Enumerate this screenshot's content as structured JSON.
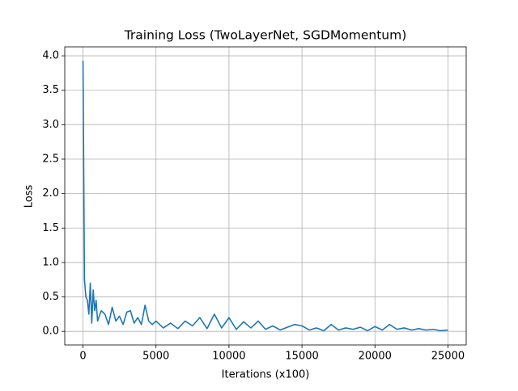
{
  "chart_data": {
    "type": "line",
    "title": "Training Loss (TwoLayerNet, SGDMomentum)",
    "xlabel": "Iterations (x100)",
    "ylabel": "Loss",
    "x": [
      0,
      100,
      200,
      300,
      400,
      500,
      600,
      700,
      800,
      900,
      1000,
      1250,
      1500,
      1750,
      2000,
      2250,
      2500,
      2750,
      3000,
      3250,
      3500,
      3750,
      4000,
      4250,
      4500,
      4750,
      5000,
      5500,
      6000,
      6500,
      7000,
      7500,
      8000,
      8500,
      9000,
      9500,
      10000,
      10500,
      11000,
      11500,
      12000,
      12500,
      13000,
      13500,
      14000,
      14500,
      15000,
      15500,
      16000,
      16500,
      17000,
      17500,
      18000,
      18500,
      19000,
      19500,
      20000,
      20500,
      21000,
      21500,
      22000,
      22500,
      23000,
      23500,
      24000,
      24500,
      25000
    ],
    "series": [
      {
        "name": "loss",
        "color": "#1f77b4",
        "values": [
          3.93,
          0.75,
          0.5,
          0.45,
          0.25,
          0.7,
          0.12,
          0.6,
          0.3,
          0.45,
          0.15,
          0.3,
          0.25,
          0.1,
          0.35,
          0.15,
          0.22,
          0.1,
          0.28,
          0.3,
          0.12,
          0.2,
          0.1,
          0.38,
          0.15,
          0.1,
          0.15,
          0.05,
          0.12,
          0.04,
          0.15,
          0.08,
          0.2,
          0.04,
          0.25,
          0.05,
          0.2,
          0.03,
          0.14,
          0.05,
          0.15,
          0.03,
          0.08,
          0.02,
          0.06,
          0.1,
          0.08,
          0.02,
          0.05,
          0.01,
          0.1,
          0.02,
          0.05,
          0.03,
          0.06,
          0.01,
          0.07,
          0.02,
          0.1,
          0.03,
          0.05,
          0.02,
          0.04,
          0.02,
          0.03,
          0.01,
          0.02
        ]
      }
    ],
    "xlim": [
      -1250,
      26250
    ],
    "xticks": [
      0,
      5000,
      10000,
      15000,
      20000,
      25000
    ],
    "ylim": [
      -0.197,
      4.13
    ],
    "yticks": [
      {
        "value": 0,
        "label": "0.0"
      },
      {
        "value": 0.5,
        "label": "0.5"
      },
      {
        "value": 1,
        "label": "1.0"
      },
      {
        "value": 1.5,
        "label": "1.5"
      },
      {
        "value": 2,
        "label": "2.0"
      },
      {
        "value": 2.5,
        "label": "2.5"
      },
      {
        "value": 3,
        "label": "3.0"
      },
      {
        "value": 3.5,
        "label": "3.5"
      },
      {
        "value": 4,
        "label": "4.0"
      }
    ],
    "grid": true
  }
}
